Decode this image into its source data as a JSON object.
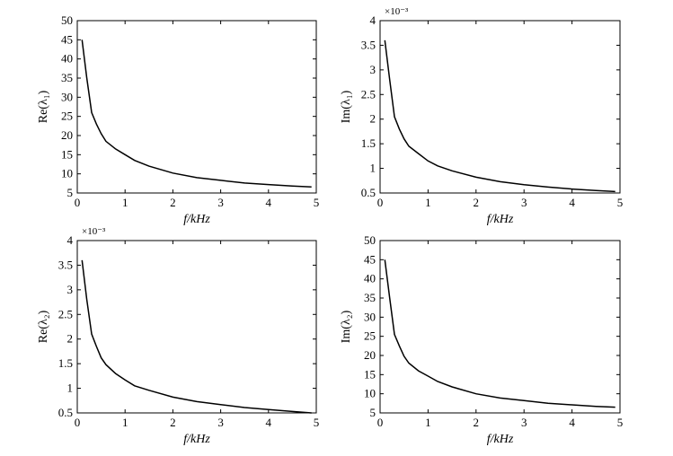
{
  "chart_data": [
    {
      "type": "line",
      "xlabel": "f/kHz",
      "ylabel": "Re(λ₁)",
      "xlim": [
        0,
        5
      ],
      "ylim": [
        5,
        50
      ],
      "xticks": [
        "0",
        "1",
        "2",
        "3",
        "4",
        "5"
      ],
      "yticks": [
        "5",
        "10",
        "15",
        "20",
        "25",
        "30",
        "35",
        "40",
        "45",
        "50"
      ],
      "multiplier": "",
      "series": [
        {
          "x": [
            0.1,
            0.2,
            0.3,
            0.4,
            0.5,
            0.6,
            0.8,
            1.0,
            1.2,
            1.5,
            2.0,
            2.5,
            3.0,
            3.5,
            4.0,
            4.5,
            4.9
          ],
          "y": [
            45,
            35,
            26,
            23,
            20.5,
            18.5,
            16.5,
            15,
            13.5,
            12,
            10.2,
            9,
            8.3,
            7.6,
            7.2,
            6.8,
            6.6
          ]
        }
      ]
    },
    {
      "type": "line",
      "xlabel": "f/kHz",
      "ylabel": "Im(λ₁)",
      "xlim": [
        0,
        5
      ],
      "ylim": [
        0.5,
        4
      ],
      "xticks": [
        "0",
        "1",
        "2",
        "3",
        "4",
        "5"
      ],
      "yticks": [
        "0.5",
        "1",
        "1.5",
        "2",
        "2.5",
        "3",
        "3.5",
        "4"
      ],
      "multiplier": "×10⁻³",
      "series": [
        {
          "x": [
            0.1,
            0.2,
            0.3,
            0.4,
            0.5,
            0.6,
            0.8,
            1.0,
            1.2,
            1.5,
            2.0,
            2.5,
            3.0,
            3.5,
            4.0,
            4.5,
            4.9
          ],
          "y": [
            3.6,
            2.8,
            2.05,
            1.8,
            1.6,
            1.45,
            1.3,
            1.15,
            1.05,
            0.95,
            0.82,
            0.73,
            0.67,
            0.62,
            0.58,
            0.55,
            0.53
          ]
        }
      ]
    },
    {
      "type": "line",
      "xlabel": "f/kHz",
      "ylabel": "Re(λ₂)",
      "xlim": [
        0,
        5
      ],
      "ylim": [
        0.5,
        4
      ],
      "xticks": [
        "0",
        "1",
        "2",
        "3",
        "4",
        "5"
      ],
      "yticks": [
        "0.5",
        "1",
        "1.5",
        "2",
        "2.5",
        "3",
        "3.5",
        "4"
      ],
      "multiplier": "×10⁻³",
      "series": [
        {
          "x": [
            0.1,
            0.2,
            0.3,
            0.4,
            0.5,
            0.6,
            0.8,
            1.0,
            1.2,
            1.5,
            2.0,
            2.5,
            3.0,
            3.5,
            4.0,
            4.5,
            4.9
          ],
          "y": [
            3.6,
            2.8,
            2.1,
            1.85,
            1.62,
            1.48,
            1.3,
            1.17,
            1.05,
            0.96,
            0.82,
            0.73,
            0.67,
            0.61,
            0.57,
            0.53,
            0.5
          ]
        }
      ]
    },
    {
      "type": "line",
      "xlabel": "f/kHz",
      "ylabel": "Im(λ₂)",
      "xlim": [
        0,
        5
      ],
      "ylim": [
        5,
        50
      ],
      "xticks": [
        "0",
        "1",
        "2",
        "3",
        "4",
        "5"
      ],
      "yticks": [
        "5",
        "10",
        "15",
        "20",
        "25",
        "30",
        "35",
        "40",
        "45",
        "50"
      ],
      "multiplier": "",
      "series": [
        {
          "x": [
            0.1,
            0.2,
            0.3,
            0.4,
            0.5,
            0.6,
            0.8,
            1.0,
            1.2,
            1.5,
            2.0,
            2.5,
            3.0,
            3.5,
            4.0,
            4.5,
            4.9
          ],
          "y": [
            45,
            35,
            25.5,
            22.5,
            19.8,
            18,
            16,
            14.6,
            13.2,
            11.8,
            10,
            8.9,
            8.2,
            7.5,
            7.1,
            6.7,
            6.5
          ]
        }
      ]
    }
  ]
}
